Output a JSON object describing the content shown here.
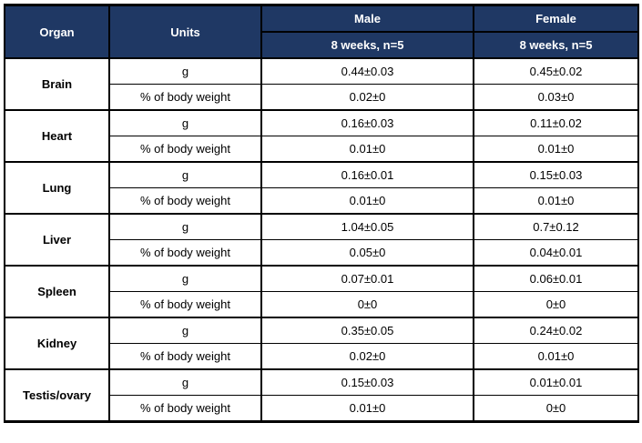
{
  "table": {
    "header": {
      "organ": "Organ",
      "units": "Units",
      "male": "Male",
      "female": "Female",
      "male_sub": "8 weeks, n=5",
      "female_sub": "8 weeks, n=5"
    },
    "units": {
      "g": "g",
      "pct": "% of body weight"
    },
    "rows": [
      {
        "organ": "Brain",
        "g_male": "0.44±0.03",
        "g_female": "0.45±0.02",
        "pct_male": "0.02±0",
        "pct_female": "0.03±0"
      },
      {
        "organ": "Heart",
        "g_male": "0.16±0.03",
        "g_female": "0.11±0.02",
        "pct_male": "0.01±0",
        "pct_female": "0.01±0"
      },
      {
        "organ": "Lung",
        "g_male": "0.16±0.01",
        "g_female": "0.15±0.03",
        "pct_male": "0.01±0",
        "pct_female": "0.01±0"
      },
      {
        "organ": "Liver",
        "g_male": "1.04±0.05",
        "g_female": "0.7±0.12",
        "pct_male": "0.05±0",
        "pct_female": "0.04±0.01"
      },
      {
        "organ": "Spleen",
        "g_male": "0.07±0.01",
        "g_female": "0.06±0.01",
        "pct_male": "0±0",
        "pct_female": "0±0"
      },
      {
        "organ": "Kidney",
        "g_male": "0.35±0.05",
        "g_female": "0.24±0.02",
        "pct_male": "0.02±0",
        "pct_female": "0.01±0"
      },
      {
        "organ": "Testis/ovary",
        "g_male": "0.15±0.03",
        "g_female": "0.01±0.01",
        "pct_male": "0.01±0",
        "pct_female": "0±0"
      }
    ],
    "colors": {
      "header_bg": "#1F3864",
      "header_text": "#FFFFFF",
      "body_text": "#000000",
      "border": "#000000"
    }
  }
}
